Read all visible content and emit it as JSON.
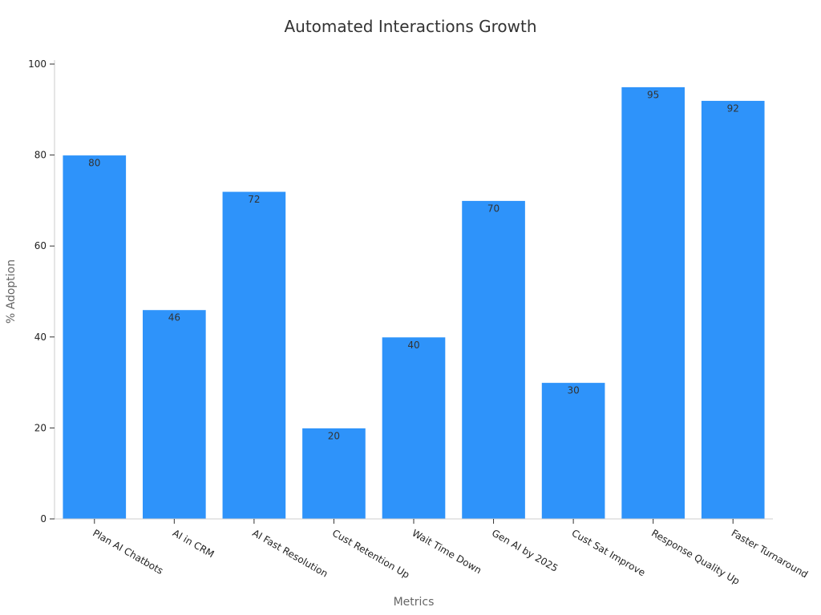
{
  "chart_data": {
    "type": "bar",
    "title": "Automated Interactions Growth",
    "xlabel": "Metrics",
    "ylabel": "% Adoption",
    "categories": [
      "Plan AI Chatbots",
      "AI in CRM",
      "AI Fast Resolution",
      "Cust Retention Up",
      "Wait Time Down",
      "Gen AI by 2025",
      "Cust Sat Improve",
      "Response Quality Up",
      "Faster Turnaround"
    ],
    "values": [
      80,
      46,
      72,
      20,
      40,
      70,
      30,
      95,
      92
    ],
    "ylim": [
      0,
      100
    ],
    "yticks": [
      0,
      20,
      40,
      60,
      80,
      100
    ],
    "grid": false,
    "legend": "none",
    "colors": {
      "bar": "#2e93fa",
      "bar_edge": "#ffffff"
    }
  }
}
